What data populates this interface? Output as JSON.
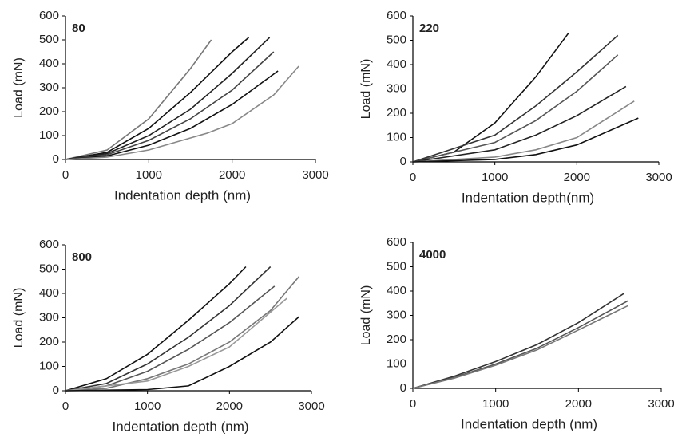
{
  "chart_data": [
    {
      "type": "line",
      "annotation": "80",
      "xlabel": "Indentation depth (nm)",
      "ylabel": "Load (mN)",
      "xlim": [
        0,
        3000
      ],
      "ylim": [
        0,
        600
      ],
      "xticks": [
        0,
        1000,
        2000,
        3000
      ],
      "yticks": [
        0,
        100,
        200,
        300,
        400,
        500,
        600
      ],
      "series": [
        {
          "color": "#777777",
          "x": [
            0,
            500,
            1000,
            1500,
            1750
          ],
          "values": [
            0,
            40,
            170,
            380,
            500
          ]
        },
        {
          "color": "#111111",
          "x": [
            0,
            500,
            1000,
            1500,
            2000,
            2200
          ],
          "values": [
            0,
            30,
            130,
            280,
            450,
            510
          ]
        },
        {
          "color": "#222222",
          "x": [
            0,
            500,
            1000,
            1500,
            2000,
            2450
          ],
          "values": [
            0,
            25,
            100,
            210,
            360,
            510
          ]
        },
        {
          "color": "#444444",
          "x": [
            0,
            500,
            1000,
            1500,
            2000,
            2500
          ],
          "values": [
            0,
            20,
            80,
            170,
            290,
            450
          ]
        },
        {
          "color": "#111111",
          "x": [
            0,
            500,
            1000,
            1500,
            2000,
            2550
          ],
          "values": [
            0,
            15,
            60,
            130,
            230,
            370
          ]
        },
        {
          "color": "#888888",
          "x": [
            0,
            500,
            1000,
            1500,
            1700,
            2000,
            2500,
            2800
          ],
          "values": [
            0,
            10,
            40,
            90,
            110,
            150,
            270,
            390
          ]
        }
      ]
    },
    {
      "type": "line",
      "annotation": "220",
      "xlabel": "Indentation depth(nm)",
      "ylabel": "Load (mN)",
      "xlim": [
        0,
        3000
      ],
      "ylim": [
        0,
        600
      ],
      "xticks": [
        0,
        1000,
        2000,
        3000
      ],
      "yticks": [
        0,
        100,
        200,
        300,
        400,
        500,
        600
      ],
      "series": [
        {
          "color": "#111111",
          "x": [
            0,
            500,
            1000,
            1500,
            1900
          ],
          "values": [
            0,
            40,
            160,
            350,
            530
          ]
        },
        {
          "color": "#333333",
          "x": [
            0,
            1000,
            1500,
            2000,
            2500
          ],
          "values": [
            0,
            110,
            230,
            370,
            520
          ]
        },
        {
          "color": "#555555",
          "x": [
            0,
            1000,
            1500,
            2000,
            2500
          ],
          "values": [
            0,
            80,
            170,
            290,
            440
          ]
        },
        {
          "color": "#222222",
          "x": [
            0,
            1000,
            1500,
            2000,
            2600
          ],
          "values": [
            0,
            50,
            110,
            190,
            310
          ]
        },
        {
          "color": "#888888",
          "x": [
            0,
            1000,
            1500,
            2000,
            2700
          ],
          "values": [
            0,
            20,
            50,
            100,
            250
          ]
        },
        {
          "color": "#111111",
          "x": [
            0,
            1000,
            1500,
            2000,
            2750
          ],
          "values": [
            0,
            10,
            30,
            70,
            180
          ]
        }
      ]
    },
    {
      "type": "line",
      "annotation": "800",
      "xlabel": "Indentation depth (nm)",
      "ylabel": "Load (mN)",
      "xlim": [
        0,
        3000
      ],
      "ylim": [
        0,
        600
      ],
      "xticks": [
        0,
        1000,
        2000,
        3000
      ],
      "yticks": [
        0,
        100,
        200,
        300,
        400,
        500,
        600
      ],
      "series": [
        {
          "color": "#111111",
          "x": [
            0,
            500,
            1000,
            1500,
            2000,
            2200
          ],
          "values": [
            0,
            50,
            150,
            290,
            440,
            510
          ]
        },
        {
          "color": "#333333",
          "x": [
            0,
            500,
            1000,
            1500,
            2000,
            2500
          ],
          "values": [
            0,
            30,
            110,
            220,
            350,
            510
          ]
        },
        {
          "color": "#555555",
          "x": [
            0,
            500,
            1000,
            1500,
            2000,
            2550
          ],
          "values": [
            0,
            20,
            80,
            170,
            280,
            430
          ]
        },
        {
          "color": "#777777",
          "x": [
            0,
            500,
            1000,
            1500,
            2000,
            2500,
            2850
          ],
          "values": [
            0,
            10,
            50,
            110,
            200,
            330,
            470
          ]
        },
        {
          "color": "#999999",
          "x": [
            0,
            1000,
            1500,
            2000,
            2700
          ],
          "values": [
            0,
            40,
            100,
            180,
            380
          ]
        },
        {
          "color": "#111111",
          "x": [
            0,
            1000,
            1500,
            2000,
            2500,
            2850
          ],
          "values": [
            0,
            5,
            20,
            100,
            200,
            305
          ]
        }
      ]
    },
    {
      "type": "line",
      "annotation": "4000",
      "xlabel": "Indentation depth (nm)",
      "ylabel": "Load (mN)",
      "xlim": [
        0,
        3000
      ],
      "ylim": [
        0,
        600
      ],
      "xticks": [
        0,
        1000,
        2000,
        3000
      ],
      "yticks": [
        0,
        100,
        200,
        300,
        400,
        500,
        600
      ],
      "series": [
        {
          "color": "#333333",
          "x": [
            0,
            500,
            1000,
            1500,
            2000,
            2550
          ],
          "values": [
            0,
            50,
            110,
            180,
            270,
            390
          ]
        },
        {
          "color": "#555555",
          "x": [
            0,
            500,
            1000,
            1500,
            2000,
            2600
          ],
          "values": [
            0,
            45,
            100,
            165,
            250,
            360
          ]
        },
        {
          "color": "#777777",
          "x": [
            0,
            500,
            1000,
            1500,
            2000,
            2600
          ],
          "values": [
            0,
            42,
            95,
            158,
            240,
            340
          ]
        }
      ]
    }
  ]
}
